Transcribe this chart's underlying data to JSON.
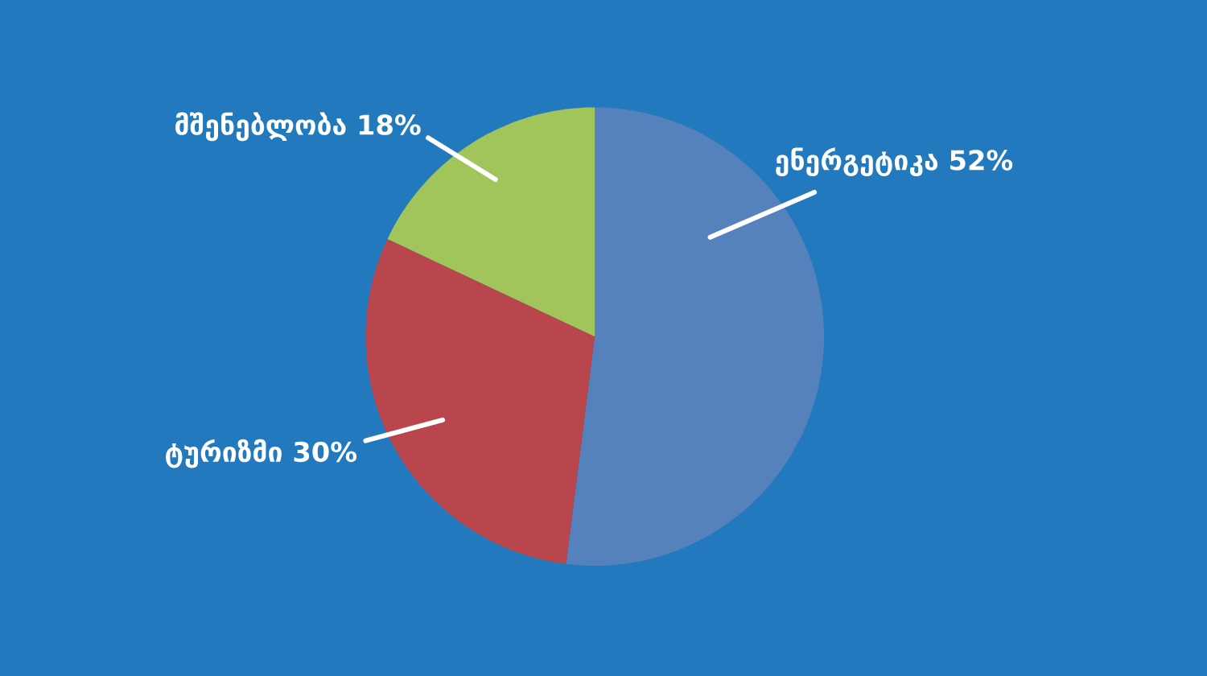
{
  "chart_data": {
    "type": "pie",
    "categories": [
      "ენერგეტიკა",
      "ტურიზმი",
      "მშენებლობა"
    ],
    "values": [
      52,
      30,
      18
    ],
    "colors": [
      "#5582bd",
      "#b9464d",
      "#a1c55b"
    ],
    "value_labels": [
      "52%",
      "30%",
      "18%"
    ]
  }
}
